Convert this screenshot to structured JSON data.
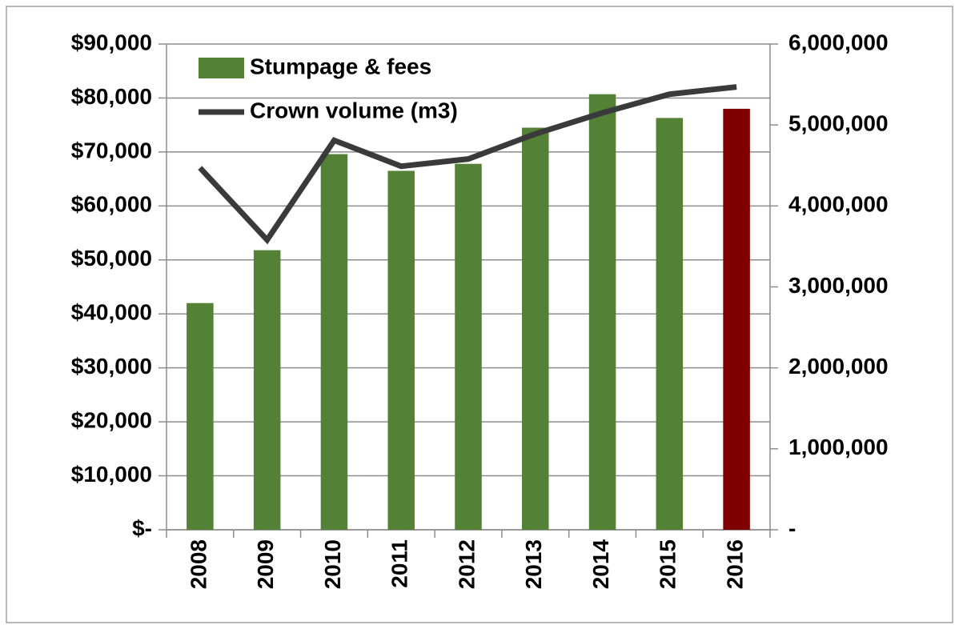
{
  "chart_data": {
    "type": "bar_line",
    "categories": [
      "2008",
      "2009",
      "2010",
      "2011",
      "2012",
      "2013",
      "2014",
      "2015",
      "2016"
    ],
    "series": [
      {
        "name": "Stumpage & fees",
        "type": "bar",
        "color": "#538135",
        "colors": [
          "#538135",
          "#538135",
          "#538135",
          "#538135",
          "#538135",
          "#538135",
          "#538135",
          "#538135",
          "#7f0000"
        ],
        "values": [
          42000,
          51800,
          69600,
          66500,
          67800,
          74500,
          80700,
          76300,
          78000
        ]
      },
      {
        "name": "Crown volume (m3)",
        "type": "line",
        "axis": "y2",
        "color": "#3a3a3a",
        "values": [
          4470000,
          3580000,
          4810000,
          4490000,
          4580000,
          4890000,
          5150000,
          5380000,
          5470000
        ]
      }
    ],
    "ylim": [
      0,
      90000
    ],
    "yticks": [
      {
        "value": 0,
        "label": "$-"
      },
      {
        "value": 10000,
        "label": "$10,000"
      },
      {
        "value": 20000,
        "label": "$20,000"
      },
      {
        "value": 30000,
        "label": "$30,000"
      },
      {
        "value": 40000,
        "label": "$40,000"
      },
      {
        "value": 50000,
        "label": "$50,000"
      },
      {
        "value": 60000,
        "label": "$60,000"
      },
      {
        "value": 70000,
        "label": "$70,000"
      },
      {
        "value": 80000,
        "label": "$80,000"
      },
      {
        "value": 90000,
        "label": "$90,000"
      }
    ],
    "y2lim": [
      0,
      6000000
    ],
    "y2ticks": [
      {
        "value": 0,
        "label": "-"
      },
      {
        "value": 1000000,
        "label": "1,000,000"
      },
      {
        "value": 2000000,
        "label": "2,000,000"
      },
      {
        "value": 3000000,
        "label": "3,000,000"
      },
      {
        "value": 4000000,
        "label": "4,000,000"
      },
      {
        "value": 5000000,
        "label": "5,000,000"
      },
      {
        "value": 6000000,
        "label": "6,000,000"
      }
    ],
    "grid": true,
    "legend": "top-left"
  }
}
